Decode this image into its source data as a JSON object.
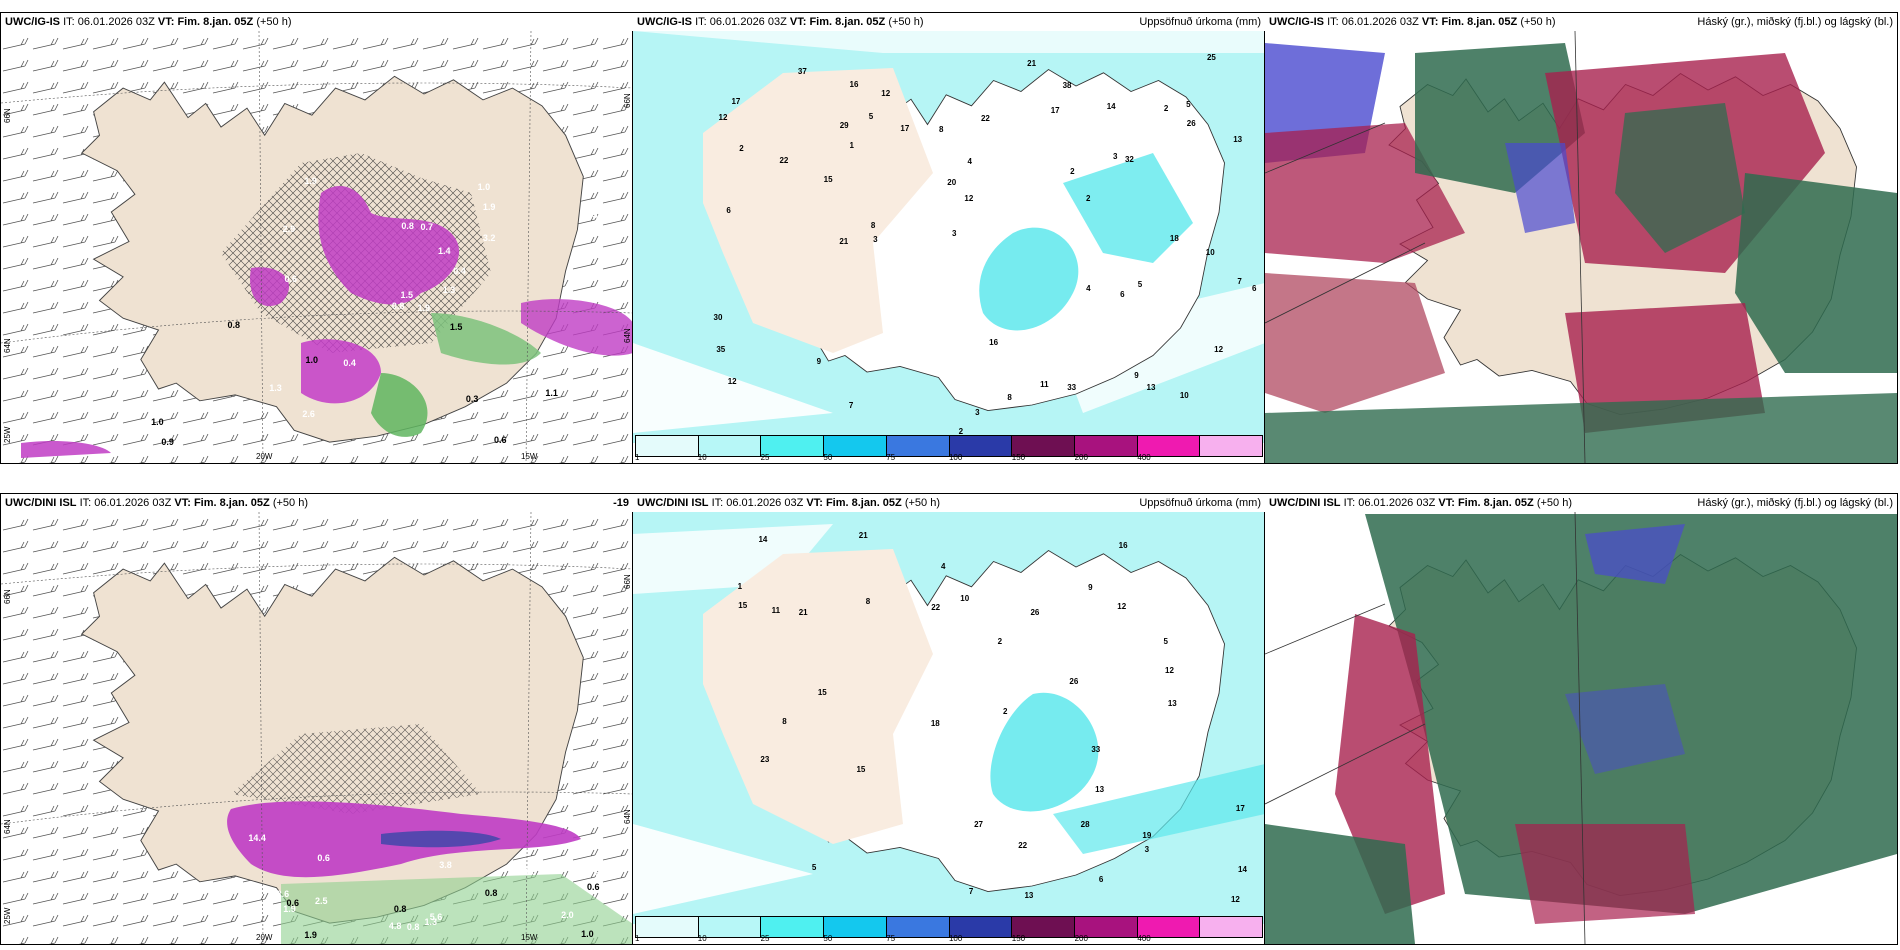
{
  "panels": {
    "top_left": {
      "model": "UWC/IG-IS",
      "it_label": "IT:",
      "it": "06.01.2026 03Z",
      "vt_label": "VT:",
      "vt": "Fim. 8.jan. 05Z",
      "lead": "(+50 h)"
    },
    "top_mid": {
      "model": "UWC/IG-IS",
      "it_label": "IT:",
      "it": "06.01.2026 03Z",
      "vt_label": "VT:",
      "vt": "Fim. 8.jan. 05Z",
      "lead": "(+50 h)",
      "right_title": "Uppsöfnuð úrkoma (mm)"
    },
    "top_right": {
      "model": "UWC/IG-IS",
      "it_label": "IT:",
      "it": "06.01.2026 03Z",
      "vt_label": "VT:",
      "vt": "Fim. 8.jan. 05Z",
      "lead": "(+50 h)",
      "right_title": "Háský (gr.), miðský (fj.bl.) og lágský (bl.)"
    },
    "bottom_left": {
      "model": "UWC/DINI ISL",
      "it_label": "IT:",
      "it": "06.01.2026 03Z",
      "vt_label": "VT:",
      "vt": "Fim. 8.jan. 05Z",
      "lead": "(+50 h)",
      "corner": "-19"
    },
    "bottom_mid": {
      "model": "UWC/DINI ISL",
      "it_label": "IT:",
      "it": "06.01.2026 03Z",
      "vt_label": "VT:",
      "vt": "Fim. 8.jan. 05Z",
      "lead": "(+50 h)",
      "right_title": "Uppsöfnuð úrkoma (mm)"
    },
    "bottom_right": {
      "model": "UWC/DINI ISL",
      "it_label": "IT:",
      "it": "06.01.2026 03Z",
      "vt_label": "VT:",
      "vt": "Fim. 8.jan. 05Z",
      "lead": "(+50 h)",
      "right_title": "Háský (gr.), miðský (fj.bl.) og lágský (bl.)"
    }
  },
  "grid_labels": {
    "lon_20w": "20W",
    "lon_15w": "15W",
    "lat_66n": "66N",
    "lat_64n": "64N",
    "lon_25w": "25W"
  },
  "colorbar": {
    "ticks": [
      "1",
      "10",
      "25",
      "50",
      "75",
      "100",
      "150",
      "200",
      "400"
    ],
    "colors": [
      "#e4fbfb",
      "#b7f7f7",
      "#4ff0f0",
      "#14c8ee",
      "#3a78e0",
      "#2a3aa8",
      "#6e0f52",
      "#a8127e",
      "#ef1ab0",
      "#f7b0ee"
    ]
  },
  "colors": {
    "land": "#efe2d2",
    "precip_light": "#b6f5f5",
    "precip_mid": "#5ee8ec",
    "precip_pink": "#c43ac4",
    "high_cloud": "#2f6b4f",
    "mid_cloud": "#a8204e",
    "low_cloud": "#4a4ad0"
  },
  "values": {
    "tl_white": [
      "1.9",
      "2.9",
      "1.5",
      "1.3",
      "0.4",
      "0.4",
      "1.0",
      "0.7",
      "1.9",
      "1.3",
      "1.9",
      "1.9",
      "0.6",
      "1.3",
      "0.8",
      "3.2",
      "2.6",
      "0.8",
      "1.4"
    ],
    "tl_black": [
      "0.3",
      "1.1",
      "0.9",
      "0.8",
      "1.0",
      "0.6",
      "1.0",
      "1.5"
    ],
    "tm_nums": [
      "2",
      "1",
      "2",
      "3",
      "2",
      "2",
      "4",
      "3",
      "5",
      "6",
      "7",
      "5",
      "3",
      "9",
      "6",
      "7",
      "8",
      "8",
      "10",
      "11",
      "13",
      "10",
      "12",
      "16",
      "14",
      "15",
      "26",
      "38",
      "37",
      "21",
      "30",
      "33",
      "25",
      "22",
      "17",
      "16",
      "17",
      "17",
      "21",
      "35",
      "32",
      "29",
      "20",
      "9",
      "8",
      "13",
      "12",
      "18",
      "12",
      "5",
      "4",
      "2",
      "3",
      "6",
      "22",
      "12",
      "12"
    ],
    "bl_white": [
      "4.8",
      "5.6",
      "3.8",
      "14.4",
      "6.0",
      "1.9",
      "1.3",
      "2.6",
      "1.0",
      "0.6",
      "2.5",
      "2.0",
      "0.8"
    ],
    "bl_black": [
      "1.0",
      "0.6",
      "0.6",
      "0.8",
      "0.8",
      "1.9"
    ],
    "bm_nums": [
      "2",
      "3",
      "1",
      "5",
      "7",
      "10",
      "13",
      "9",
      "15",
      "23",
      "19",
      "26",
      "33",
      "11",
      "14",
      "12",
      "17",
      "28",
      "22",
      "13",
      "15",
      "27",
      "26",
      "18",
      "12",
      "21",
      "14",
      "12",
      "2",
      "4",
      "5",
      "8",
      "16",
      "13",
      "15",
      "22",
      "21",
      "8",
      "6"
    ]
  }
}
